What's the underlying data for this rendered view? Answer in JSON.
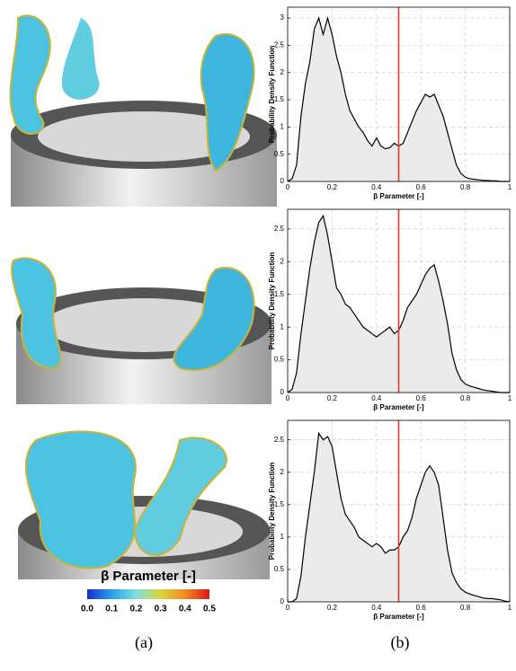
{
  "chart_data": [
    {
      "type": "line",
      "x_label": "β Parameter [-]",
      "y_label": "Probability Density Function",
      "x": [
        0,
        0.02,
        0.04,
        0.06,
        0.08,
        0.1,
        0.12,
        0.14,
        0.16,
        0.18,
        0.2,
        0.22,
        0.24,
        0.26,
        0.28,
        0.3,
        0.32,
        0.34,
        0.36,
        0.38,
        0.4,
        0.42,
        0.44,
        0.46,
        0.48,
        0.5,
        0.52,
        0.54,
        0.56,
        0.58,
        0.6,
        0.62,
        0.64,
        0.66,
        0.68,
        0.7,
        0.72,
        0.74,
        0.76,
        0.78,
        0.8,
        0.82,
        0.84,
        0.86,
        0.88,
        0.9,
        0.92,
        0.94,
        0.96,
        0.98,
        1
      ],
      "values": [
        0,
        0.05,
        0.3,
        1.2,
        1.8,
        2.2,
        2.8,
        3.0,
        2.7,
        3.0,
        2.7,
        2.3,
        2.0,
        1.6,
        1.3,
        1.15,
        1.0,
        0.9,
        0.75,
        0.65,
        0.8,
        0.65,
        0.6,
        0.62,
        0.7,
        0.65,
        0.7,
        0.9,
        1.1,
        1.3,
        1.45,
        1.6,
        1.55,
        1.6,
        1.4,
        1.2,
        0.9,
        0.6,
        0.3,
        0.15,
        0.08,
        0.05,
        0.04,
        0.03,
        0.02,
        0.02,
        0.01,
        0.01,
        0,
        0,
        0
      ],
      "color": "#000000",
      "fill_color": "#ebebeb",
      "vline": 0.5,
      "vline_color": "#e8392f",
      "xlim": [
        0,
        1
      ],
      "xticks": [
        0,
        0.2,
        0.4,
        0.6,
        0.8,
        1
      ],
      "ylim": [
        0,
        3.2
      ],
      "yticks": [
        0,
        0.5,
        1,
        1.5,
        2,
        2.5,
        3
      ],
      "grid": true
    },
    {
      "type": "line",
      "x_label": "β Parameter [-]",
      "y_label": "Probability Density Function",
      "x": [
        0,
        0.02,
        0.04,
        0.06,
        0.08,
        0.1,
        0.12,
        0.14,
        0.16,
        0.18,
        0.2,
        0.22,
        0.24,
        0.26,
        0.28,
        0.3,
        0.32,
        0.34,
        0.36,
        0.38,
        0.4,
        0.42,
        0.44,
        0.46,
        0.48,
        0.5,
        0.52,
        0.54,
        0.56,
        0.58,
        0.6,
        0.62,
        0.64,
        0.66,
        0.68,
        0.7,
        0.72,
        0.74,
        0.76,
        0.78,
        0.8,
        0.82,
        0.84,
        0.86,
        0.88,
        0.9,
        0.92,
        0.94,
        0.96,
        0.98,
        1
      ],
      "values": [
        0,
        0.05,
        0.3,
        0.9,
        1.4,
        1.9,
        2.3,
        2.6,
        2.7,
        2.4,
        2.0,
        1.6,
        1.5,
        1.35,
        1.3,
        1.2,
        1.1,
        1.0,
        0.95,
        0.9,
        0.85,
        0.9,
        0.95,
        1.0,
        0.9,
        0.95,
        1.1,
        1.3,
        1.4,
        1.5,
        1.65,
        1.8,
        1.9,
        1.95,
        1.7,
        1.4,
        1.05,
        0.6,
        0.35,
        0.2,
        0.13,
        0.1,
        0.08,
        0.06,
        0.04,
        0.03,
        0.02,
        0.01,
        0,
        0,
        0
      ],
      "color": "#000000",
      "fill_color": "#ebebeb",
      "vline": 0.5,
      "vline_color": "#e8392f",
      "xlim": [
        0,
        1
      ],
      "xticks": [
        0,
        0.2,
        0.4,
        0.6,
        0.8,
        1
      ],
      "ylim": [
        0,
        2.8
      ],
      "yticks": [
        0,
        0.5,
        1,
        1.5,
        2,
        2.5
      ],
      "grid": true
    },
    {
      "type": "line",
      "x_label": "β Parameter [-]",
      "y_label": "Probability Density Function",
      "x": [
        0,
        0.02,
        0.04,
        0.06,
        0.08,
        0.1,
        0.12,
        0.14,
        0.16,
        0.18,
        0.2,
        0.22,
        0.24,
        0.26,
        0.28,
        0.3,
        0.32,
        0.34,
        0.36,
        0.38,
        0.4,
        0.42,
        0.44,
        0.46,
        0.48,
        0.5,
        0.52,
        0.54,
        0.56,
        0.58,
        0.6,
        0.62,
        0.64,
        0.66,
        0.68,
        0.7,
        0.72,
        0.74,
        0.76,
        0.78,
        0.8,
        0.82,
        0.84,
        0.86,
        0.88,
        0.9,
        0.92,
        0.94,
        0.96,
        0.98,
        1
      ],
      "values": [
        0,
        0,
        0.05,
        0.4,
        1.0,
        1.5,
        2.0,
        2.6,
        2.5,
        2.55,
        2.4,
        2.0,
        1.6,
        1.35,
        1.25,
        1.15,
        1.0,
        0.95,
        0.9,
        0.85,
        0.9,
        0.85,
        0.75,
        0.8,
        0.8,
        0.85,
        1.0,
        1.1,
        1.3,
        1.6,
        1.8,
        2.0,
        2.1,
        2.0,
        1.8,
        1.3,
        0.8,
        0.45,
        0.3,
        0.2,
        0.15,
        0.12,
        0.1,
        0.08,
        0.06,
        0.05,
        0.05,
        0.04,
        0.03,
        0.01,
        0
      ],
      "color": "#000000",
      "fill_color": "#ebebeb",
      "vline": 0.5,
      "vline_color": "#e8392f",
      "xlim": [
        0,
        1
      ],
      "xticks": [
        0,
        0.2,
        0.4,
        0.6,
        0.8,
        1
      ],
      "ylim": [
        0,
        2.8
      ],
      "yticks": [
        0,
        0.5,
        1,
        1.5,
        2,
        2.5
      ],
      "grid": true
    }
  ],
  "colorbar": {
    "title": "β Parameter [-]",
    "lim": [
      0,
      0.5
    ],
    "ticks": [
      {
        "value": 0,
        "label": "0.0"
      },
      {
        "value": 0.1,
        "label": "0.1"
      },
      {
        "value": 0.2,
        "label": "0.2"
      },
      {
        "value": 0.3,
        "label": "0.3"
      },
      {
        "value": 0.4,
        "label": "0.4"
      },
      {
        "value": 0.5,
        "label": "0.5"
      }
    ]
  },
  "panel_labels": [
    "(a)",
    "(b)"
  ]
}
